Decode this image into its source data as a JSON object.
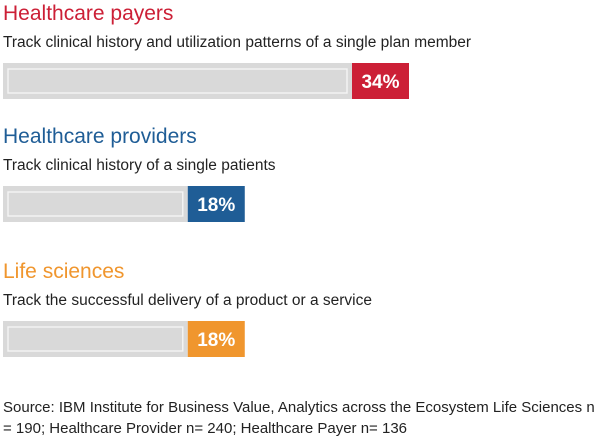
{
  "chart_data": {
    "type": "bar",
    "categories": [
      "Healthcare payers",
      "Healthcare providers",
      "Life sciences"
    ],
    "descriptions": [
      "Track clinical history and utilization patterns of a single plan member",
      "Track clinical history of a single patients",
      "Track the successful delivery of a product or a service"
    ],
    "values": [
      34,
      18,
      18
    ],
    "value_labels": [
      "34%",
      "18%",
      "18%"
    ],
    "colors": [
      "#cc1f36",
      "#1f5d96",
      "#f0962e"
    ],
    "track_color": "#d9d9d9",
    "orientation": "horizontal",
    "grid": false
  },
  "source": "Source: IBM Institute for Business Value, Analytics across the Ecosystem Life Sciences  n = 190;  Healthcare Provider n= 240; Healthcare Payer n= 136"
}
